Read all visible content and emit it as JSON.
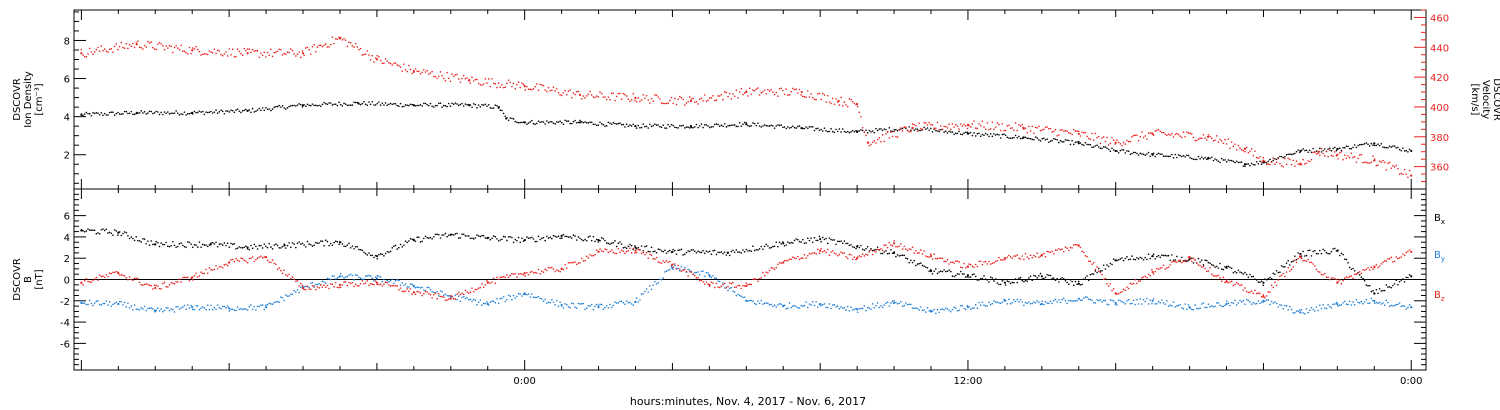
{
  "xlabel": "hours:minutes, Nov.  4, 2017 - Nov.  6, 2017",
  "colors": {
    "black": "#000000",
    "red": "#e8231f",
    "blue": "#1f7fd6"
  },
  "chart_data": [
    {
      "type": "scatter",
      "panel": "top",
      "ylabel_left": [
        "DSCOVR",
        "Ion Density",
        "[cm⁻³]"
      ],
      "ylabel_right": [
        "DSCOVR",
        "Velocity",
        "[km/s]"
      ],
      "x_unit": "hours from 00:00 Nov. 5, 2017",
      "xlim": [
        -12.2,
        24.4
      ],
      "xticks": [
        {
          "x": 0,
          "label": "0:00"
        },
        {
          "x": 12,
          "label": "12:00"
        },
        {
          "x": 24,
          "label": "0:00"
        }
      ],
      "ylim_left": [
        0.2,
        9.6
      ],
      "yticks_left": [
        2,
        4,
        6,
        8
      ],
      "ylim_right": [
        345,
        465
      ],
      "yticks_right": [
        360,
        380,
        400,
        420,
        440,
        460
      ],
      "series": [
        {
          "axis": "left",
          "color": "#000000",
          "points": [
            [
              -12.0,
              4.1
            ],
            [
              -10.5,
              4.2
            ],
            [
              -9.0,
              4.2
            ],
            [
              -7.5,
              4.3
            ],
            [
              -6.0,
              4.6
            ],
            [
              -4.5,
              4.7
            ],
            [
              -3.0,
              4.6
            ],
            [
              -1.5,
              4.6
            ],
            [
              -0.7,
              4.5
            ],
            [
              -0.5,
              3.9
            ],
            [
              0.0,
              3.7
            ],
            [
              1.5,
              3.7
            ],
            [
              3.0,
              3.5
            ],
            [
              4.5,
              3.5
            ],
            [
              6.0,
              3.6
            ],
            [
              7.5,
              3.4
            ],
            [
              9.0,
              3.2
            ],
            [
              10.5,
              3.4
            ],
            [
              12.0,
              3.1
            ],
            [
              13.5,
              2.9
            ],
            [
              15.0,
              2.6
            ],
            [
              16.0,
              2.2
            ],
            [
              17.0,
              2.0
            ],
            [
              18.5,
              1.8
            ],
            [
              19.5,
              1.5
            ],
            [
              20.0,
              1.6
            ],
            [
              21.0,
              2.2
            ],
            [
              22.0,
              2.3
            ],
            [
              23.0,
              2.6
            ],
            [
              24.0,
              2.2
            ]
          ]
        },
        {
          "axis": "right",
          "color": "#e8231f",
          "points": [
            [
              -12.0,
              436
            ],
            [
              -10.5,
              442
            ],
            [
              -9.0,
              438
            ],
            [
              -7.5,
              436
            ],
            [
              -6.0,
              436
            ],
            [
              -5.0,
              446
            ],
            [
              -4.0,
              432
            ],
            [
              -3.0,
              424
            ],
            [
              -1.5,
              418
            ],
            [
              0.0,
              414
            ],
            [
              1.5,
              408
            ],
            [
              3.0,
              406
            ],
            [
              4.5,
              404
            ],
            [
              6.0,
              410
            ],
            [
              7.5,
              410
            ],
            [
              8.5,
              404
            ],
            [
              9.0,
              402
            ],
            [
              9.3,
              376
            ],
            [
              10.5,
              386
            ],
            [
              12.0,
              388
            ],
            [
              13.5,
              386
            ],
            [
              15.0,
              382
            ],
            [
              16.0,
              376
            ],
            [
              17.0,
              382
            ],
            [
              18.5,
              380
            ],
            [
              19.5,
              372
            ],
            [
              20.0,
              364
            ],
            [
              21.0,
              362
            ],
            [
              21.5,
              370
            ],
            [
              22.0,
              368
            ],
            [
              23.0,
              364
            ],
            [
              24.0,
              354
            ]
          ]
        }
      ]
    },
    {
      "type": "scatter",
      "panel": "bottom",
      "ylabel_left": [
        "DSCOVR",
        "B",
        "[nT]"
      ],
      "x_unit": "hours from 00:00 Nov. 5, 2017",
      "xlim": [
        -12.2,
        24.4
      ],
      "xticks": [
        {
          "x": 0,
          "label": "0:00"
        },
        {
          "x": 12,
          "label": "12:00"
        },
        {
          "x": 24,
          "label": "0:00"
        }
      ],
      "ylim": [
        -8.5,
        8.5
      ],
      "yticks": [
        -6,
        -4,
        -2,
        0,
        2,
        4,
        6
      ],
      "zero_line": true,
      "series": [
        {
          "name": "Bx",
          "label_main": "B",
          "label_sub": "x",
          "color": "#000000",
          "points": [
            [
              -12.0,
              4.6
            ],
            [
              -11.0,
              4.4
            ],
            [
              -10.0,
              3.3
            ],
            [
              -8.5,
              3.3
            ],
            [
              -7.5,
              3.0
            ],
            [
              -6.5,
              3.2
            ],
            [
              -5.0,
              3.5
            ],
            [
              -4.0,
              2.2
            ],
            [
              -3.0,
              3.7
            ],
            [
              -2.0,
              4.2
            ],
            [
              -1.0,
              3.9
            ],
            [
              0.0,
              3.7
            ],
            [
              1.0,
              4.1
            ],
            [
              2.0,
              3.7
            ],
            [
              3.0,
              3.0
            ],
            [
              4.0,
              2.6
            ],
            [
              5.5,
              2.5
            ],
            [
              7.0,
              3.4
            ],
            [
              8.0,
              3.8
            ],
            [
              9.0,
              3.1
            ],
            [
              10.0,
              2.5
            ],
            [
              11.0,
              0.8
            ],
            [
              12.0,
              0.4
            ],
            [
              13.0,
              -0.3
            ],
            [
              14.0,
              0.3
            ],
            [
              15.0,
              -0.4
            ],
            [
              16.0,
              1.8
            ],
            [
              17.0,
              2.2
            ],
            [
              18.0,
              1.9
            ],
            [
              19.0,
              1.1
            ],
            [
              20.0,
              -0.3
            ],
            [
              21.0,
              2.4
            ],
            [
              22.0,
              2.7
            ],
            [
              23.0,
              -1.3
            ],
            [
              24.0,
              0.3
            ]
          ]
        },
        {
          "name": "By",
          "label_main": "B",
          "label_sub": "y",
          "color": "#1f7fd6",
          "points": [
            [
              -12.0,
              -2.2
            ],
            [
              -11.0,
              -2.3
            ],
            [
              -10.0,
              -3.0
            ],
            [
              -9.0,
              -2.6
            ],
            [
              -8.0,
              -2.7
            ],
            [
              -7.0,
              -2.6
            ],
            [
              -6.0,
              -0.8
            ],
            [
              -5.0,
              0.3
            ],
            [
              -4.0,
              0.1
            ],
            [
              -3.0,
              -0.6
            ],
            [
              -2.0,
              -1.6
            ],
            [
              -1.0,
              -2.3
            ],
            [
              0.0,
              -1.3
            ],
            [
              1.0,
              -2.4
            ],
            [
              2.0,
              -2.6
            ],
            [
              3.0,
              -2.1
            ],
            [
              4.0,
              1.1
            ],
            [
              5.0,
              0.4
            ],
            [
              6.0,
              -2.0
            ],
            [
              7.0,
              -2.5
            ],
            [
              8.0,
              -2.3
            ],
            [
              9.0,
              -2.8
            ],
            [
              10.0,
              -2.2
            ],
            [
              11.0,
              -3.0
            ],
            [
              12.0,
              -2.6
            ],
            [
              13.0,
              -2.0
            ],
            [
              14.0,
              -2.3
            ],
            [
              15.0,
              -1.8
            ],
            [
              16.0,
              -2.2
            ],
            [
              17.0,
              -2.0
            ],
            [
              18.0,
              -2.6
            ],
            [
              19.0,
              -2.3
            ],
            [
              20.0,
              -2.0
            ],
            [
              21.0,
              -3.1
            ],
            [
              22.0,
              -2.3
            ],
            [
              23.0,
              -2.0
            ],
            [
              24.0,
              -2.6
            ]
          ]
        },
        {
          "name": "Bz",
          "label_main": "B",
          "label_sub": "z",
          "color": "#e8231f",
          "points": [
            [
              -12.0,
              -0.3
            ],
            [
              -11.0,
              0.6
            ],
            [
              -10.0,
              -0.8
            ],
            [
              -9.0,
              0.2
            ],
            [
              -8.0,
              1.6
            ],
            [
              -7.0,
              2.1
            ],
            [
              -6.0,
              -0.8
            ],
            [
              -5.0,
              -0.5
            ],
            [
              -4.0,
              -0.3
            ],
            [
              -3.0,
              -1.2
            ],
            [
              -2.0,
              -1.8
            ],
            [
              -1.0,
              -0.3
            ],
            [
              0.0,
              0.6
            ],
            [
              1.0,
              1.0
            ],
            [
              2.0,
              2.6
            ],
            [
              3.0,
              2.7
            ],
            [
              4.0,
              1.4
            ],
            [
              5.0,
              -0.5
            ],
            [
              6.0,
              -0.6
            ],
            [
              7.0,
              1.6
            ],
            [
              8.0,
              2.7
            ],
            [
              9.0,
              2.0
            ],
            [
              10.0,
              3.4
            ],
            [
              11.0,
              2.2
            ],
            [
              12.0,
              1.2
            ],
            [
              13.0,
              2.0
            ],
            [
              14.0,
              2.3
            ],
            [
              15.0,
              3.2
            ],
            [
              16.0,
              -1.3
            ],
            [
              17.0,
              0.7
            ],
            [
              18.0,
              2.1
            ],
            [
              19.0,
              -0.2
            ],
            [
              20.0,
              -1.6
            ],
            [
              21.0,
              2.1
            ],
            [
              22.0,
              -0.3
            ],
            [
              23.0,
              1.2
            ],
            [
              24.0,
              2.6
            ]
          ]
        }
      ]
    }
  ]
}
